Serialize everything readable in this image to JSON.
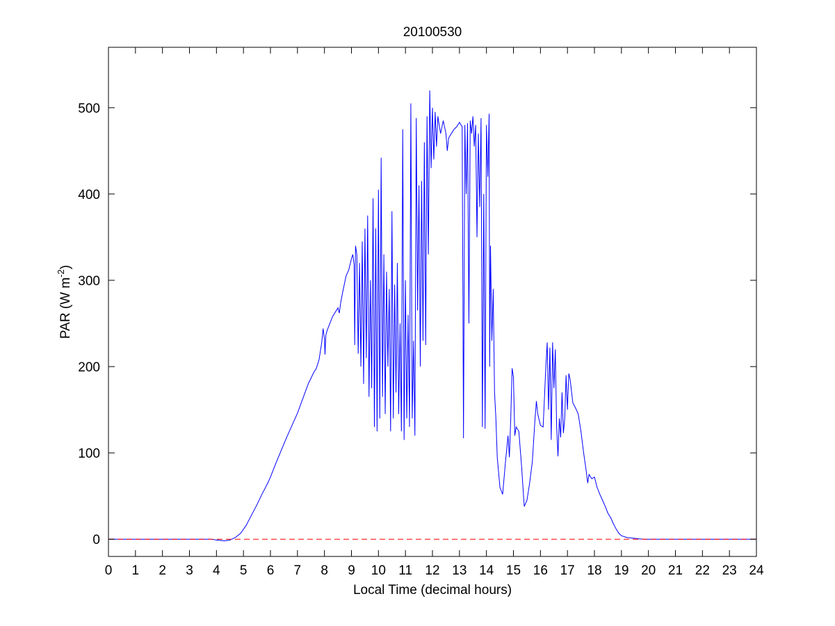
{
  "chart_data": {
    "type": "line",
    "title": "20100530",
    "xlabel": "Local Time (decimal hours)",
    "ylabel": {
      "main": "PAR (W m",
      "superscript": "-2",
      "close": ")"
    },
    "xlim": [
      0,
      24
    ],
    "ylim": [
      -20,
      570
    ],
    "xticks": [
      0,
      1,
      2,
      3,
      4,
      5,
      6,
      7,
      8,
      9,
      10,
      11,
      12,
      13,
      14,
      15,
      16,
      17,
      18,
      19,
      20,
      21,
      22,
      23,
      24
    ],
    "yticks": [
      0,
      100,
      200,
      300,
      400,
      500
    ],
    "grid": false,
    "legend": "none",
    "series": [
      {
        "color": "#0000ff",
        "style": "solid",
        "points": [
          [
            0,
            0
          ],
          [
            3.8,
            0
          ],
          [
            4.0,
            -1
          ],
          [
            4.3,
            -2
          ],
          [
            4.5,
            -1
          ],
          [
            4.7,
            2
          ],
          [
            4.9,
            7
          ],
          [
            5.1,
            16
          ],
          [
            5.3,
            28
          ],
          [
            5.5,
            40
          ],
          [
            5.7,
            53
          ],
          [
            5.9,
            65
          ],
          [
            6.0,
            72
          ],
          [
            6.2,
            88
          ],
          [
            6.4,
            103
          ],
          [
            6.6,
            118
          ],
          [
            6.8,
            132
          ],
          [
            7.0,
            146
          ],
          [
            7.2,
            163
          ],
          [
            7.4,
            180
          ],
          [
            7.6,
            193
          ],
          [
            7.7,
            198
          ],
          [
            7.8,
            208
          ],
          [
            7.9,
            228
          ],
          [
            7.95,
            244
          ],
          [
            8.0,
            232
          ],
          [
            8.02,
            214
          ],
          [
            8.05,
            236
          ],
          [
            8.1,
            242
          ],
          [
            8.2,
            250
          ],
          [
            8.3,
            258
          ],
          [
            8.4,
            263
          ],
          [
            8.5,
            268
          ],
          [
            8.55,
            262
          ],
          [
            8.6,
            274
          ],
          [
            8.7,
            290
          ],
          [
            8.8,
            305
          ],
          [
            8.9,
            312
          ],
          [
            9.0,
            325
          ],
          [
            9.05,
            330
          ],
          [
            9.1,
            318
          ],
          [
            9.12,
            225
          ],
          [
            9.15,
            340
          ],
          [
            9.2,
            330
          ],
          [
            9.25,
            215
          ],
          [
            9.3,
            320
          ],
          [
            9.35,
            200
          ],
          [
            9.4,
            345
          ],
          [
            9.45,
            180
          ],
          [
            9.5,
            360
          ],
          [
            9.55,
            210
          ],
          [
            9.6,
            375
          ],
          [
            9.65,
            165
          ],
          [
            9.7,
            300
          ],
          [
            9.75,
            175
          ],
          [
            9.8,
            395
          ],
          [
            9.85,
            130
          ],
          [
            9.9,
            360
          ],
          [
            9.95,
            125
          ],
          [
            10.0,
            405
          ],
          [
            10.05,
            140
          ],
          [
            10.1,
            442
          ],
          [
            10.15,
            165
          ],
          [
            10.2,
            330
          ],
          [
            10.25,
            145
          ],
          [
            10.3,
            310
          ],
          [
            10.35,
            200
          ],
          [
            10.4,
            290
          ],
          [
            10.45,
            125
          ],
          [
            10.5,
            380
          ],
          [
            10.55,
            140
          ],
          [
            10.6,
            295
          ],
          [
            10.65,
            170
          ],
          [
            10.7,
            320
          ],
          [
            10.75,
            145
          ],
          [
            10.8,
            250
          ],
          [
            10.85,
            125
          ],
          [
            10.9,
            475
          ],
          [
            10.95,
            115
          ],
          [
            11.0,
            300
          ],
          [
            11.05,
            140
          ],
          [
            11.1,
            260
          ],
          [
            11.15,
            130
          ],
          [
            11.2,
            505
          ],
          [
            11.25,
            140
          ],
          [
            11.3,
            230
          ],
          [
            11.35,
            120
          ],
          [
            11.4,
            488
          ],
          [
            11.45,
            265
          ],
          [
            11.5,
            410
          ],
          [
            11.55,
            200
          ],
          [
            11.6,
            415
          ],
          [
            11.65,
            230
          ],
          [
            11.7,
            460
          ],
          [
            11.75,
            225
          ],
          [
            11.8,
            490
          ],
          [
            11.85,
            330
          ],
          [
            11.9,
            520
          ],
          [
            11.95,
            430
          ],
          [
            12.0,
            500
          ],
          [
            12.05,
            440
          ],
          [
            12.1,
            495
          ],
          [
            12.15,
            455
          ],
          [
            12.2,
            490
          ],
          [
            12.3,
            470
          ],
          [
            12.4,
            485
          ],
          [
            12.5,
            470
          ],
          [
            12.55,
            450
          ],
          [
            12.6,
            465
          ],
          [
            12.7,
            470
          ],
          [
            12.8,
            475
          ],
          [
            12.9,
            478
          ],
          [
            13.0,
            483
          ],
          [
            13.1,
            478
          ],
          [
            13.15,
            117
          ],
          [
            13.2,
            480
          ],
          [
            13.25,
            400
          ],
          [
            13.3,
            482
          ],
          [
            13.35,
            250
          ],
          [
            13.4,
            485
          ],
          [
            13.45,
            470
          ],
          [
            13.5,
            490
          ],
          [
            13.55,
            455
          ],
          [
            13.6,
            480
          ],
          [
            13.65,
            350
          ],
          [
            13.7,
            470
          ],
          [
            13.75,
            385
          ],
          [
            13.8,
            488
          ],
          [
            13.85,
            130
          ],
          [
            13.9,
            400
          ],
          [
            13.95,
            128
          ],
          [
            14.0,
            480
          ],
          [
            14.05,
            420
          ],
          [
            14.1,
            493
          ],
          [
            14.12,
            200
          ],
          [
            14.15,
            340
          ],
          [
            14.2,
            230
          ],
          [
            14.25,
            290
          ],
          [
            14.3,
            170
          ],
          [
            14.35,
            140
          ],
          [
            14.4,
            95
          ],
          [
            14.5,
            60
          ],
          [
            14.6,
            52
          ],
          [
            14.7,
            88
          ],
          [
            14.8,
            120
          ],
          [
            14.85,
            95
          ],
          [
            14.9,
            140
          ],
          [
            14.95,
            198
          ],
          [
            15.0,
            188
          ],
          [
            15.05,
            120
          ],
          [
            15.1,
            130
          ],
          [
            15.2,
            125
          ],
          [
            15.3,
            85
          ],
          [
            15.4,
            38
          ],
          [
            15.5,
            45
          ],
          [
            15.6,
            65
          ],
          [
            15.7,
            90
          ],
          [
            15.8,
            140
          ],
          [
            15.85,
            160
          ],
          [
            15.9,
            145
          ],
          [
            16.0,
            132
          ],
          [
            16.1,
            130
          ],
          [
            16.15,
            165
          ],
          [
            16.2,
            200
          ],
          [
            16.25,
            228
          ],
          [
            16.3,
            150
          ],
          [
            16.35,
            222
          ],
          [
            16.4,
            115
          ],
          [
            16.45,
            228
          ],
          [
            16.5,
            175
          ],
          [
            16.55,
            220
          ],
          [
            16.6,
            130
          ],
          [
            16.65,
            96
          ],
          [
            16.7,
            140
          ],
          [
            16.75,
            118
          ],
          [
            16.8,
            170
          ],
          [
            16.85,
            123
          ],
          [
            16.9,
            140
          ],
          [
            16.95,
            190
          ],
          [
            17.0,
            150
          ],
          [
            17.05,
            192
          ],
          [
            17.1,
            185
          ],
          [
            17.2,
            158
          ],
          [
            17.3,
            152
          ],
          [
            17.4,
            145
          ],
          [
            17.5,
            125
          ],
          [
            17.6,
            100
          ],
          [
            17.7,
            78
          ],
          [
            17.75,
            65
          ],
          [
            17.8,
            75
          ],
          [
            17.9,
            70
          ],
          [
            18.0,
            72
          ],
          [
            18.1,
            60
          ],
          [
            18.2,
            52
          ],
          [
            18.3,
            45
          ],
          [
            18.4,
            38
          ],
          [
            18.5,
            30
          ],
          [
            18.6,
            25
          ],
          [
            18.7,
            18
          ],
          [
            18.8,
            12
          ],
          [
            18.9,
            7
          ],
          [
            19.0,
            4
          ],
          [
            19.2,
            2
          ],
          [
            19.5,
            1
          ],
          [
            19.8,
            0
          ],
          [
            24,
            0
          ]
        ]
      },
      {
        "color": "#ff0000",
        "style": "dashed",
        "points": [
          [
            0,
            0
          ],
          [
            24,
            0
          ]
        ]
      }
    ]
  }
}
